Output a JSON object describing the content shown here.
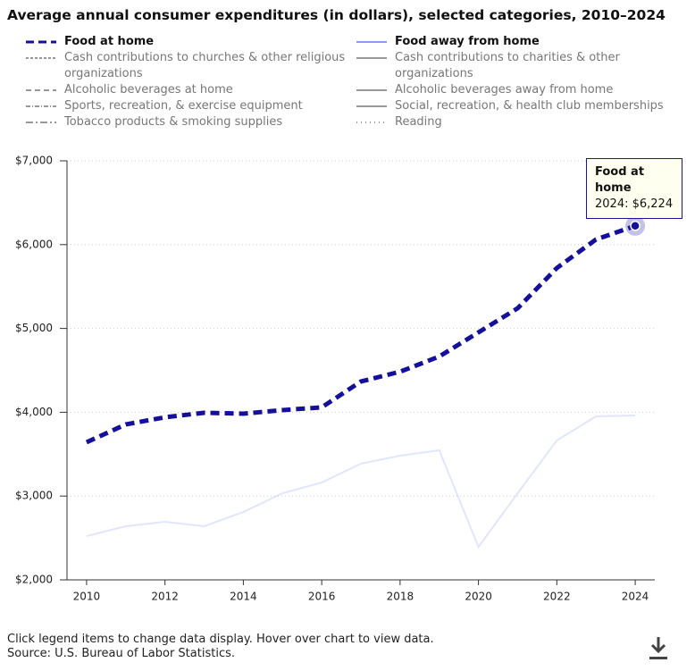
{
  "chart_data": {
    "type": "line",
    "title": "Average annual consumer expenditures (in dollars), selected categories, 2010–2024",
    "x": [
      2010,
      2011,
      2012,
      2013,
      2014,
      2015,
      2016,
      2017,
      2018,
      2019,
      2020,
      2021,
      2022,
      2023,
      2024
    ],
    "series": [
      {
        "name": "Food at home",
        "color": "#14109a",
        "dash": "10 6",
        "width": 5,
        "visible": true,
        "values": [
          3642,
          3855,
          3940,
          3994,
          3983,
          4026,
          4058,
          4367,
          4484,
          4665,
          4953,
          5241,
          5721,
          6062,
          6224
        ]
      },
      {
        "name": "Food away from home",
        "color": "#8a9cf0",
        "dash": "none",
        "width": 2,
        "visible": true,
        "values": [
          2522,
          2640,
          2693,
          2640,
          2810,
          3034,
          3162,
          3386,
          3482,
          3546,
          2394,
          3034,
          3663,
          3951,
          3962
        ]
      },
      {
        "name": "Cash contributions to churches & other religious organizations",
        "color": "#777777",
        "dash": "3 2",
        "width": 1.5,
        "visible": false
      },
      {
        "name": "Cash contributions to charities & other organizations",
        "color": "#777777",
        "dash": "none",
        "width": 1.5,
        "visible": false
      },
      {
        "name": "Alcoholic beverages at home",
        "color": "#777777",
        "dash": "6 4",
        "width": 1.5,
        "visible": false
      },
      {
        "name": "Alcoholic beverages away from home",
        "color": "#777777",
        "dash": "none",
        "width": 1.5,
        "visible": false
      },
      {
        "name": "Sports, recreation, & exercise equipment",
        "color": "#777777",
        "dash": "5 2 1 2",
        "width": 1.5,
        "visible": false
      },
      {
        "name": "Social, recreation, & health club memberships",
        "color": "#777777",
        "dash": "none",
        "width": 1.5,
        "visible": false
      },
      {
        "name": "Tobacco products & smoking supplies",
        "color": "#777777",
        "dash": "8 3 2 3",
        "width": 1.5,
        "visible": false
      },
      {
        "name": "Reading",
        "color": "#777777",
        "dash": "1 4",
        "width": 1.5,
        "visible": false
      }
    ],
    "xlim": [
      2009.5,
      2024.5
    ],
    "xticks": [
      2010,
      2012,
      2014,
      2016,
      2018,
      2020,
      2022,
      2024
    ],
    "ylim": [
      2000,
      7000
    ],
    "yticks": [
      {
        "value": 2000,
        "label": "$2,000"
      },
      {
        "value": 3000,
        "label": "$3,000"
      },
      {
        "value": 4000,
        "label": "$4,000"
      },
      {
        "value": 5000,
        "label": "$5,000"
      },
      {
        "value": 6000,
        "label": "$6,000"
      },
      {
        "value": 7000,
        "label": "$7,000"
      }
    ],
    "grid": true,
    "tooltip": {
      "series": 0,
      "index": 14,
      "title": "Food at home",
      "text": "2024: $6,224"
    },
    "notes": [
      "Click legend items to change data display. Hover over chart to view data.",
      "Source: U.S. Bureau of Labor Statistics."
    ]
  }
}
